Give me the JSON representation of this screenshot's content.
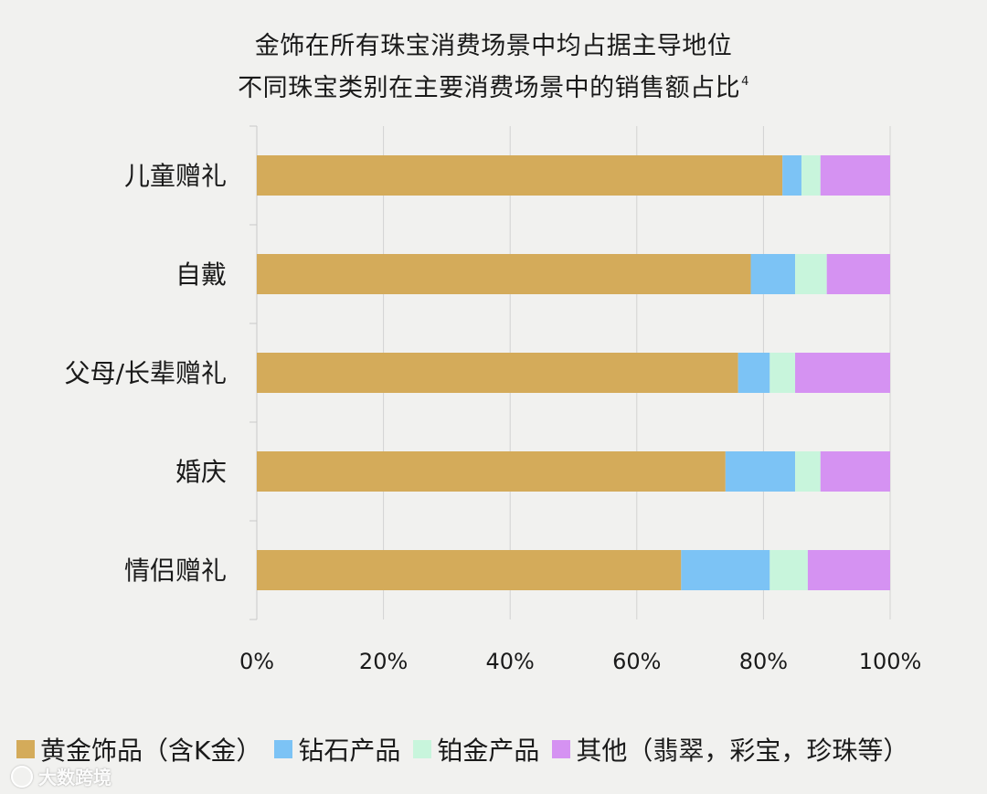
{
  "chart_data": {
    "type": "bar",
    "orientation": "horizontal",
    "stacked": true,
    "title": "金饰在所有珠宝消费场景中均占据主导地位",
    "subtitle": "不同珠宝类别在主要消费场景中的销售额占比",
    "subtitle_footnote": "4",
    "categories": [
      "儿童赠礼",
      "自戴",
      "父母/长辈赠礼",
      "婚庆",
      "情侣赠礼"
    ],
    "series": [
      {
        "name": "黄金饰品（含K金）",
        "color": "#d4ab5a",
        "values": [
          83,
          78,
          76,
          74,
          67
        ]
      },
      {
        "name": "钻石产品",
        "color": "#7cc3f5",
        "values": [
          3,
          7,
          5,
          11,
          14
        ]
      },
      {
        "name": "铂金产品",
        "color": "#c8f5dc",
        "values": [
          3,
          5,
          4,
          4,
          6
        ]
      },
      {
        "name": "其他（翡翠，彩宝，珍珠等）",
        "color": "#d592f2",
        "values": [
          11,
          10,
          15,
          11,
          13
        ]
      }
    ],
    "xlim": [
      0,
      100
    ],
    "xticks": [
      "0%",
      "20%",
      "40%",
      "60%",
      "80%",
      "100%"
    ],
    "grid": true,
    "legend_position": "bottom"
  },
  "watermark": {
    "icon": "cloud-logo-icon",
    "text": "大数跨境"
  }
}
